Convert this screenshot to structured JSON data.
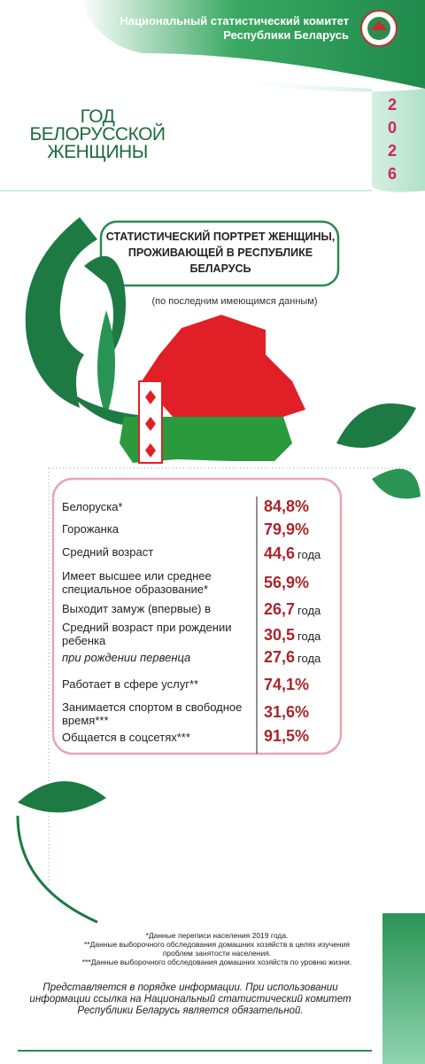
{
  "header": {
    "org": "Национальный статистический комитет Республики Беларусь"
  },
  "campaign": {
    "title": "ГОД БЕЛОРУССКОЙ ЖЕНЩИНЫ",
    "year": "2026"
  },
  "portrait": {
    "title": "СТАТИСТИЧЕСКИЙ ПОРТРЕТ ЖЕНЩИНЫ, ПРОЖИВАЮЩЕЙ В РЕСПУБЛИКЕ БЕЛАРУСЬ",
    "note": "(по последним имеющимся данным)"
  },
  "table": {
    "rows": [
      {
        "label": "Белоруска*",
        "value": "84,8%"
      },
      {
        "label": "Горожанка",
        "value": "79,9%"
      },
      {
        "label": "Средний возраст",
        "value": "44,6",
        "unit": "года"
      },
      {
        "label": "Имеет высшее или среднее специальное образование*",
        "value": "56,9%"
      },
      {
        "label": "Выходит замуж (впервые) в",
        "value": "26,7",
        "unit": "года"
      },
      {
        "label": "Средний возраст при рождении ребенка",
        "value": "30,5",
        "unit": "года"
      },
      {
        "label": "при рождении первенца",
        "value": "27,6",
        "unit": "года"
      },
      {
        "label": "Работает в сфере услуг**",
        "value": "74,1%"
      },
      {
        "label": "Занимается спортом в свободное время***",
        "value": "31,6%"
      },
      {
        "label": "Общается в соцсетях***",
        "value": "91,5%"
      }
    ]
  },
  "footnotes": [
    "*Данные переписи населения 2019 года.",
    "**Данные выборочного обследования домашних хозяйств в целях изучения проблем занятости населения.",
    "***Данные выборочного обследования домашних хозяйств по уровню жизни."
  ],
  "disclaimer": "Представляется в порядке информации. При использовании информации ссылка на Национальный статистический комитет Республики Беларусь является обязательной."
}
